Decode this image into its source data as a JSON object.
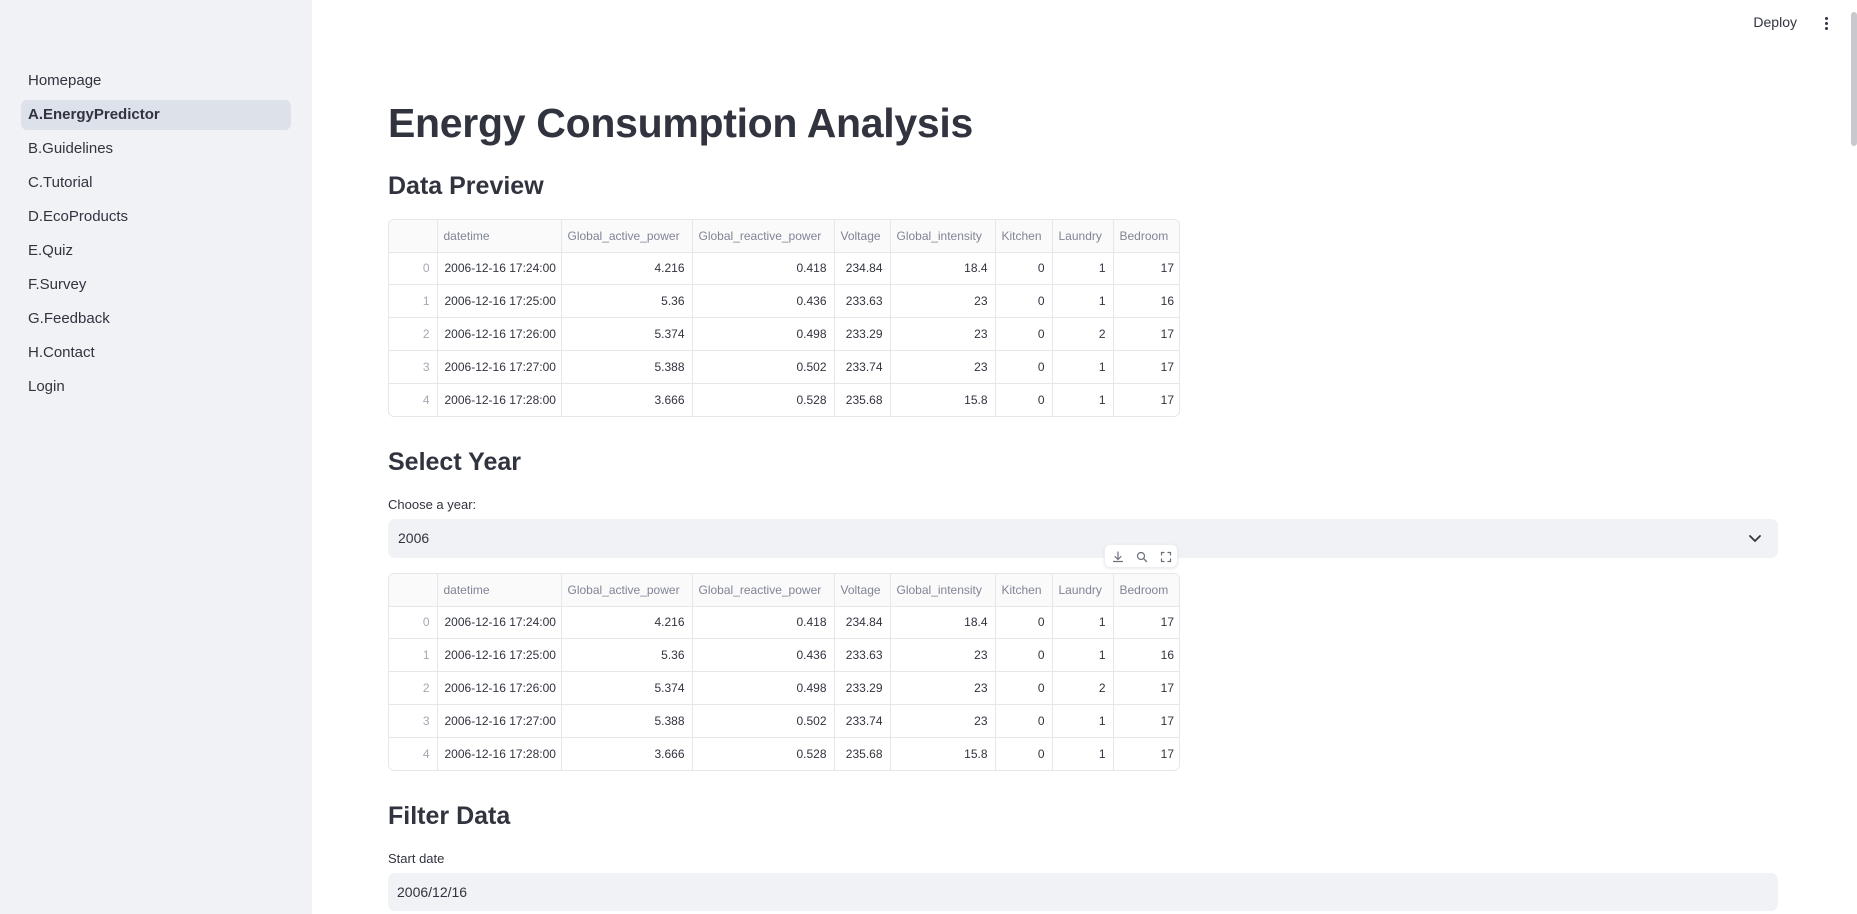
{
  "sidebar": {
    "items": [
      {
        "label": "Homepage",
        "active": false
      },
      {
        "label": "A.EnergyPredictor",
        "active": true
      },
      {
        "label": "B.Guidelines",
        "active": false
      },
      {
        "label": "C.Tutorial",
        "active": false
      },
      {
        "label": "D.EcoProducts",
        "active": false
      },
      {
        "label": "E.Quiz",
        "active": false
      },
      {
        "label": "F.Survey",
        "active": false
      },
      {
        "label": "G.Feedback",
        "active": false
      },
      {
        "label": "H.Contact",
        "active": false
      },
      {
        "label": "Login",
        "active": false
      }
    ]
  },
  "header": {
    "deploy_label": "Deploy",
    "menu_icon": "kebab-menu-icon"
  },
  "main": {
    "title": "Energy Consumption Analysis",
    "data_preview": {
      "heading": "Data Preview"
    },
    "select_year": {
      "heading": "Select Year",
      "label": "Choose a year:",
      "value": "2006"
    },
    "filter_data": {
      "heading": "Filter Data",
      "start_date_label": "Start date",
      "start_date_value": "2006/12/16"
    }
  },
  "table": {
    "columns": [
      "",
      "datetime",
      "Global_active_power",
      "Global_reactive_power",
      "Voltage",
      "Global_intensity",
      "Kitchen",
      "Laundry",
      "Bedroom"
    ],
    "rows": [
      [
        "0",
        "2006-12-16 17:24:00",
        "4.216",
        "0.418",
        "234.84",
        "18.4",
        "0",
        "1",
        "17"
      ],
      [
        "1",
        "2006-12-16 17:25:00",
        "5.36",
        "0.436",
        "233.63",
        "23",
        "0",
        "1",
        "16"
      ],
      [
        "2",
        "2006-12-16 17:26:00",
        "5.374",
        "0.498",
        "233.29",
        "23",
        "0",
        "2",
        "17"
      ],
      [
        "3",
        "2006-12-16 17:27:00",
        "5.388",
        "0.502",
        "233.74",
        "23",
        "0",
        "1",
        "17"
      ],
      [
        "4",
        "2006-12-16 17:28:00",
        "3.666",
        "0.528",
        "235.68",
        "15.8",
        "0",
        "1",
        "17"
      ]
    ]
  },
  "table_toolbar": {
    "icons": [
      "download-icon",
      "search-icon",
      "fullscreen-icon"
    ]
  },
  "colors": {
    "sidebar_bg": "#f0f2f6",
    "active_item_bg": "#dde1e9",
    "text": "#31333f",
    "muted_text": "#808495",
    "input_bg": "#f0f2f6"
  }
}
